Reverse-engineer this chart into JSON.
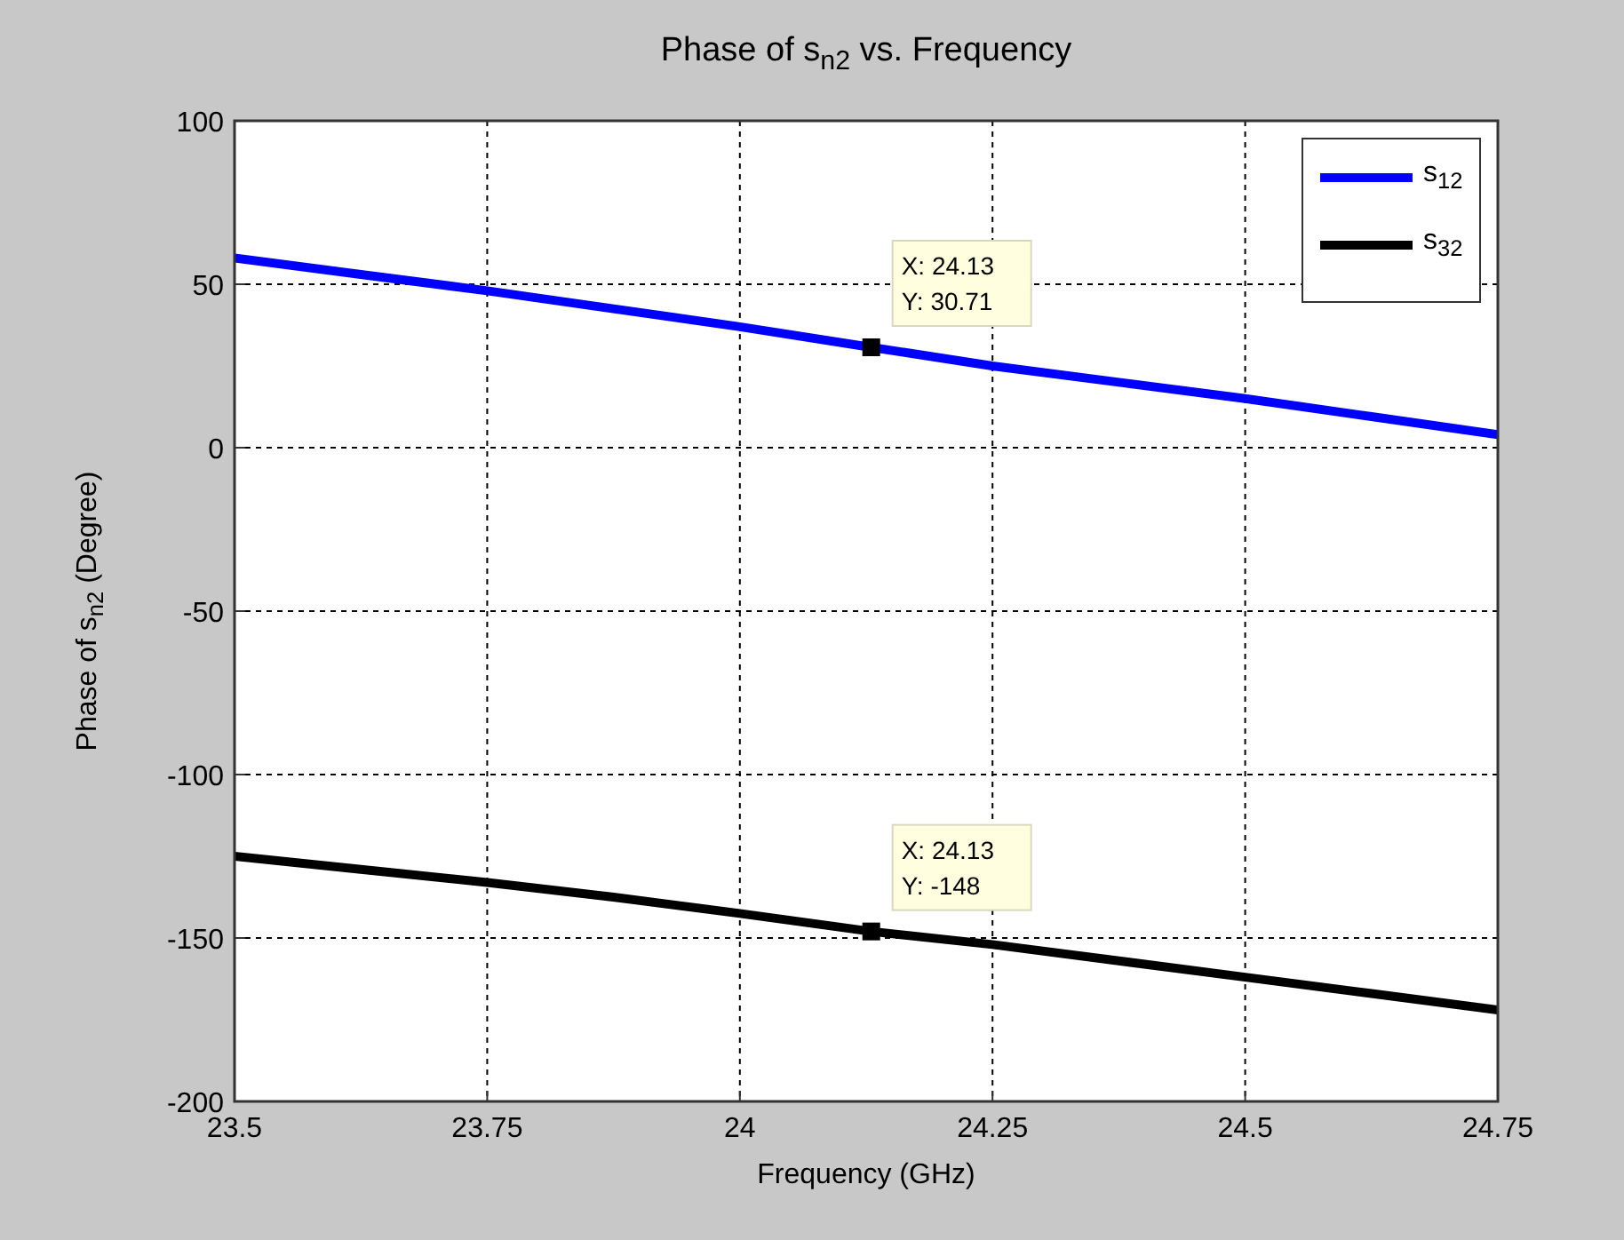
{
  "chart_data": {
    "type": "line",
    "title": "Phase of s$_{n2}$ vs. Frequency",
    "xlabel": "Frequency (GHz)",
    "ylabel": "Phase of s$_{n2}$ (Degree)",
    "x": [
      23.5,
      23.625,
      23.75,
      23.875,
      24,
      24.13,
      24.25,
      24.375,
      24.5,
      24.625,
      24.75
    ],
    "series": [
      {
        "name": "s$_{12}$",
        "color": "#0000ff",
        "values": [
          58,
          53,
          48,
          42.5,
          37,
          30.71,
          25,
          20,
          15,
          9.5,
          4
        ]
      },
      {
        "name": "s$_{32}$",
        "color": "#000000",
        "values": [
          -125,
          -129,
          -133,
          -137.5,
          -142.5,
          -148,
          -152,
          -157,
          -162,
          -167,
          -172
        ]
      }
    ],
    "xlim": [
      23.5,
      24.75
    ],
    "xticks": [
      23.5,
      23.75,
      24,
      24.25,
      24.5,
      24.75
    ],
    "ylim": [
      -200,
      100
    ],
    "yticks": [
      -200,
      -150,
      -100,
      -50,
      0,
      50,
      100
    ],
    "grid": true,
    "legend": "top right",
    "marker": "none",
    "line_style": "solid",
    "annotations": [
      {
        "text": "X: 24.13\nY: 30.71",
        "x": 24.13,
        "y": 30.71
      },
      {
        "text": "X: 24.13\nY: -148",
        "x": 24.13,
        "y": -148
      }
    ]
  }
}
